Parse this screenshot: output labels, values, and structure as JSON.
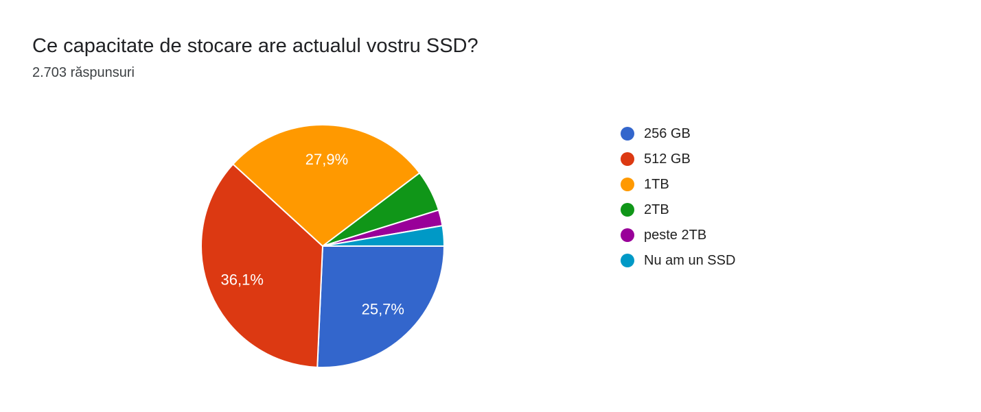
{
  "page": {
    "background_color": "#ffffff"
  },
  "chart_data": {
    "type": "pie",
    "title": "Ce capacitate de stocare are actualul vostru SSD?",
    "subtitle": "2.703 răspunsuri",
    "responses_count": 2703,
    "legend_position": "right",
    "start_angle_deg": 0,
    "direction": "clockwise",
    "slice_gap_color": "#ffffff",
    "slice_label_color": "#ffffff",
    "slices": [
      {
        "label": "256 GB",
        "value_pct": 25.7,
        "display_label": "25,7%",
        "color": "#3366CC",
        "show_label": true
      },
      {
        "label": "512 GB",
        "value_pct": 36.1,
        "display_label": "36,1%",
        "color": "#DC3912",
        "show_label": true
      },
      {
        "label": "1TB",
        "value_pct": 27.9,
        "display_label": "27,9%",
        "color": "#FF9900",
        "show_label": true
      },
      {
        "label": "2TB",
        "value_pct": 5.5,
        "display_label": null,
        "color": "#109618",
        "show_label": false
      },
      {
        "label": "peste 2TB",
        "value_pct": 2.1,
        "display_label": null,
        "color": "#990099",
        "show_label": false
      },
      {
        "label": "Nu am un SSD",
        "value_pct": 2.7,
        "display_label": null,
        "color": "#0099C6",
        "show_label": false
      }
    ]
  }
}
